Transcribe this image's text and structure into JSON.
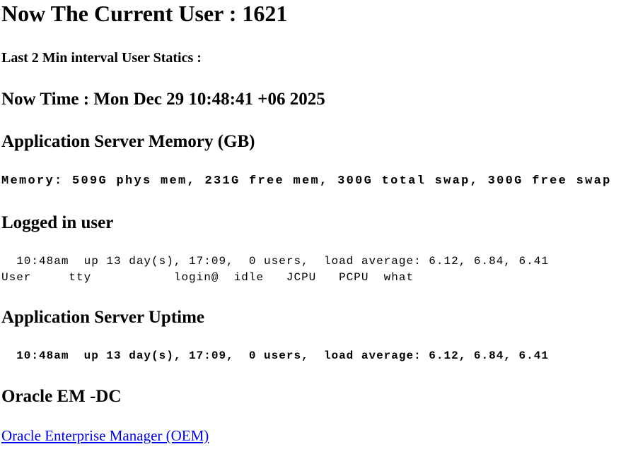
{
  "current_user_heading": "Now The Current User : 1621",
  "interval_stats_heading": "Last 2 Min interval User Statics :",
  "now_time": "Now Time : Mon Dec 29 10:48:41 +06 2025",
  "memory_section": {
    "title": "Application Server Memory (GB)",
    "line": "Memory: 509G phys mem, 231G free mem, 300G total swap, 300G free swap"
  },
  "logged_in_section": {
    "title": "Logged in user",
    "uptime_line": "  10:48am  up 13 day(s), 17:09,  0 users,  load average: 6.12, 6.84, 6.41",
    "header_line": "User     tty           login@  idle   JCPU   PCPU  what"
  },
  "uptime_section": {
    "title": "Application Server Uptime",
    "line": "  10:48am  up 13 day(s), 17:09,  0 users,  load average: 6.12, 6.84, 6.41"
  },
  "oracle_section": {
    "title": "Oracle EM -DC",
    "link_label": "Oracle Enterprise Manager (OEM)"
  },
  "colors": {
    "link": "#0000ee",
    "text": "#000000"
  }
}
